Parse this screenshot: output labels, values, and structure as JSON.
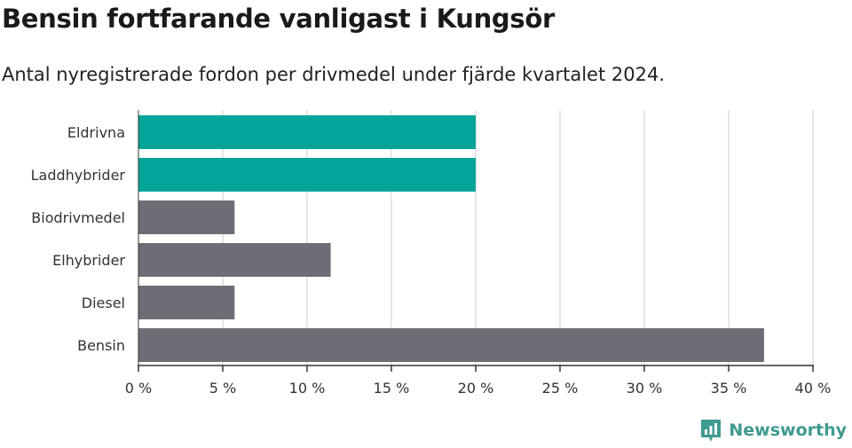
{
  "header": {
    "title": "Bensin fortfarande vanligast i Kungsör",
    "subtitle": "Antal nyregistrerade fordon per drivmedel under fjärde kvartalet 2024."
  },
  "brand": {
    "name": "Newsworthy",
    "icon": "newsworthy-logo-icon",
    "color": "#3f9a8f"
  },
  "chart_data": {
    "type": "bar",
    "orientation": "horizontal",
    "categories": [
      "Eldrivna",
      "Laddhybrider",
      "Biodrivmedel",
      "Elhybrider",
      "Diesel",
      "Bensin"
    ],
    "values": [
      20,
      20,
      5.7,
      11.4,
      5.7,
      37.1
    ],
    "unit": "%",
    "highlight": [
      "Eldrivna",
      "Laddhybrider"
    ],
    "colors": {
      "highlight": "#00a499",
      "default": "#6e6c75",
      "grid": "#dddddd"
    },
    "xlim": [
      0,
      40
    ],
    "xticks": [
      0,
      5,
      10,
      15,
      20,
      25,
      30,
      35,
      40
    ],
    "xtick_labels": [
      "0 %",
      "5 %",
      "10 %",
      "15 %",
      "20 %",
      "25 %",
      "30 %",
      "35 %",
      "40 %"
    ],
    "grid": true
  }
}
